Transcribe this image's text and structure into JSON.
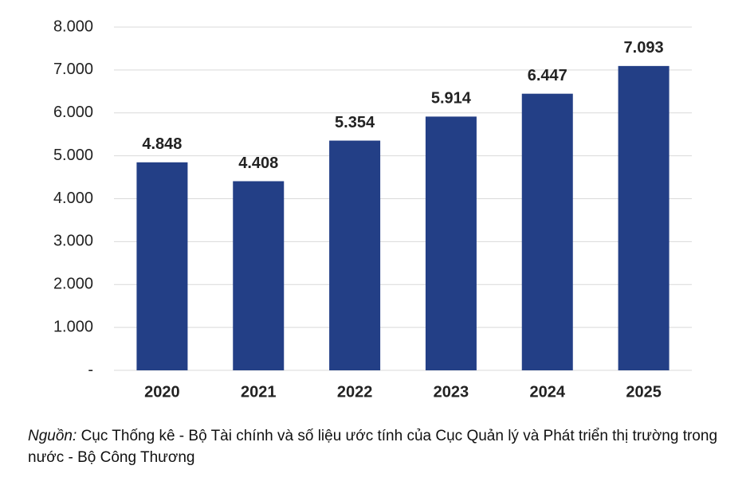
{
  "chart_data": {
    "type": "bar",
    "categories": [
      "2020",
      "2021",
      "2022",
      "2023",
      "2024",
      "2025"
    ],
    "values": [
      4848,
      4408,
      5354,
      5914,
      6447,
      7093
    ],
    "value_labels": [
      "4.848",
      "4.408",
      "5.354",
      "5.914",
      "6.447",
      "7.093"
    ],
    "color": "#233f86",
    "ylim": [
      0,
      8000
    ],
    "yticks": [
      {
        "value": 0,
        "label": "-"
      },
      {
        "value": 1000,
        "label": "1.000"
      },
      {
        "value": 2000,
        "label": "2.000"
      },
      {
        "value": 3000,
        "label": "3.000"
      },
      {
        "value": 4000,
        "label": "4.000"
      },
      {
        "value": 5000,
        "label": "5.000"
      },
      {
        "value": 6000,
        "label": "6.000"
      },
      {
        "value": 7000,
        "label": "7.000"
      },
      {
        "value": 8000,
        "label": "8.000"
      }
    ],
    "grid": true,
    "source_label": "Nguồn:",
    "source": "Cục Thống kê - Bộ Tài chính và số liệu ước tính của Cục Quản lý và Phát triển thị trường trong nước - Bộ Công Thương"
  }
}
